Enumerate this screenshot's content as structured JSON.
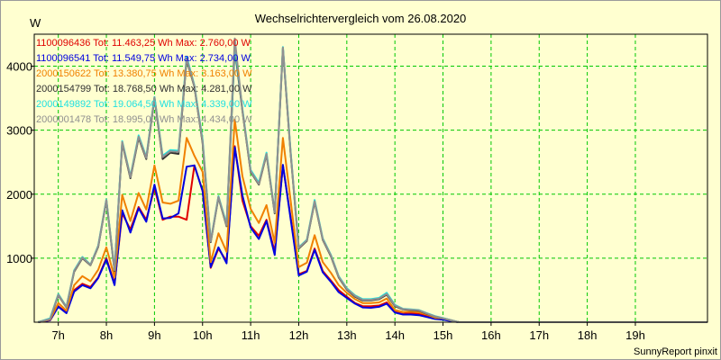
{
  "chart_data": {
    "type": "line",
    "title": "Wechselrichtervergleich vom 26.08.2020",
    "ylabel": "W",
    "xlabel": "",
    "footer": "SunnyReport pinxit",
    "ylim": [
      0,
      4500
    ],
    "xlim": [
      6.5,
      20.5
    ],
    "yticks": [
      1000,
      2000,
      3000,
      4000
    ],
    "xticks": [
      7,
      8,
      9,
      10,
      11,
      12,
      13,
      14,
      15,
      16,
      17,
      18,
      19
    ],
    "xtick_labels": [
      "7h",
      "8h",
      "9h",
      "10h",
      "11h",
      "12h",
      "13h",
      "14h",
      "15h",
      "16h",
      "17h",
      "18h",
      "19h"
    ],
    "grid": true,
    "legend_position": "top-left",
    "x": [
      6.58,
      6.83,
      7.0,
      7.17,
      7.33,
      7.5,
      7.67,
      7.83,
      8.0,
      8.17,
      8.33,
      8.5,
      8.67,
      8.83,
      9.0,
      9.17,
      9.33,
      9.5,
      9.67,
      9.83,
      10.0,
      10.17,
      10.33,
      10.5,
      10.67,
      10.83,
      11.0,
      11.17,
      11.33,
      11.5,
      11.67,
      11.83,
      12.0,
      12.17,
      12.33,
      12.5,
      12.67,
      12.83,
      13.0,
      13.17,
      13.33,
      13.5,
      13.67,
      13.83,
      14.0,
      14.17,
      14.33,
      14.5,
      14.67,
      14.83,
      15.0,
      15.17,
      15.33,
      15.5,
      15.67,
      15.83,
      16.0,
      16.17,
      16.33,
      16.5,
      16.67,
      16.83,
      17.0,
      17.17,
      17.33,
      17.5,
      17.67,
      17.83,
      18.0,
      18.17,
      18.33,
      18.5,
      18.67,
      18.83,
      19.0,
      19.17,
      19.33,
      19.5,
      19.67,
      19.83,
      20.0,
      20.25,
      20.5
    ],
    "series": [
      {
        "name": "1100096436",
        "label": "1100096436 Tot: 11.463,25 Wh Max: 2.760,00 W",
        "color": "#e00000",
        "values": [
          0,
          30,
          250,
          150,
          500,
          600,
          550,
          700,
          1000,
          600,
          1700,
          1450,
          1800,
          1600,
          2100,
          1600,
          1650,
          1650,
          1600,
          2450,
          2050,
          850,
          1150,
          950,
          2750,
          1900,
          1500,
          1350,
          1600,
          1100,
          2450,
          1650,
          750,
          800,
          1150,
          800,
          650,
          500,
          400,
          300,
          250,
          250,
          260,
          310,
          160,
          130,
          140,
          130,
          100,
          60,
          50,
          20,
          0,
          0,
          0,
          0,
          0,
          0,
          0,
          0,
          0,
          0,
          0,
          0,
          0,
          0,
          0,
          0,
          0,
          0,
          0,
          0,
          0,
          0,
          0,
          0,
          0,
          0,
          0,
          0,
          0,
          0,
          0
        ]
      },
      {
        "name": "1100096541",
        "label": "1100096541 Tot: 11.549,75 Wh Max: 2.734,00 W",
        "color": "#0000e0",
        "values": [
          0,
          30,
          240,
          140,
          480,
          580,
          530,
          690,
          980,
          580,
          1750,
          1400,
          1780,
          1570,
          2150,
          1620,
          1630,
          1700,
          2430,
          2450,
          2050,
          860,
          1170,
          920,
          2734,
          1980,
          1480,
          1300,
          1580,
          1050,
          2460,
          1620,
          730,
          790,
          1130,
          780,
          630,
          470,
          380,
          290,
          230,
          225,
          240,
          290,
          150,
          120,
          120,
          110,
          80,
          50,
          40,
          15,
          0,
          0,
          0,
          0,
          0,
          0,
          0,
          0,
          0,
          0,
          0,
          0,
          0,
          0,
          0,
          0,
          0,
          0,
          0,
          0,
          0,
          0,
          0,
          0,
          0,
          0,
          0,
          0,
          0,
          0,
          0
        ]
      },
      {
        "name": "2000150622",
        "label": "2000150622 Tot: 13.380,75 Wh Max: 3.163,00 W",
        "color": "#f08000",
        "values": [
          0,
          40,
          300,
          180,
          580,
          720,
          640,
          820,
          1170,
          700,
          1990,
          1580,
          2020,
          1760,
          2450,
          1870,
          1850,
          1900,
          2880,
          2600,
          2350,
          940,
          1390,
          1100,
          3163,
          2280,
          1770,
          1550,
          1830,
          1240,
          2880,
          1910,
          860,
          930,
          1360,
          940,
          770,
          580,
          460,
          360,
          300,
          300,
          310,
          370,
          190,
          160,
          165,
          155,
          120,
          70,
          60,
          25,
          0,
          0,
          0,
          0,
          0,
          0,
          0,
          0,
          0,
          0,
          0,
          0,
          0,
          0,
          0,
          0,
          0,
          0,
          0,
          0,
          0,
          0,
          0,
          0,
          0,
          0,
          0,
          0,
          0,
          0,
          0
        ]
      },
      {
        "name": "2000154799",
        "label": "2000154799 Tot: 18.768,50 Wh Max: 4.281,00 W",
        "color": "#303030",
        "values": [
          0,
          50,
          420,
          230,
          790,
          1000,
          890,
          1180,
          1900,
          800,
          2800,
          2250,
          2880,
          2550,
          3500,
          2550,
          2650,
          2630,
          4100,
          3680,
          2800,
          1250,
          1950,
          1500,
          4281,
          3300,
          2350,
          2150,
          2620,
          1700,
          4281,
          2650,
          1150,
          1270,
          1880,
          1290,
          1030,
          700,
          510,
          400,
          340,
          340,
          360,
          430,
          250,
          200,
          190,
          180,
          130,
          90,
          60,
          30,
          0,
          0,
          0,
          0,
          0,
          0,
          0,
          0,
          0,
          0,
          0,
          0,
          0,
          0,
          0,
          0,
          0,
          0,
          0,
          0,
          0,
          0,
          0,
          0,
          0,
          0,
          0,
          0,
          0,
          0,
          0
        ]
      },
      {
        "name": "2000149892",
        "label": "2000149892 Tot: 19.064,50 Wh Max: 4.339,00 W",
        "color": "#20e0e0",
        "values": [
          0,
          60,
          440,
          240,
          810,
          1020,
          900,
          1200,
          1920,
          820,
          2830,
          2280,
          2920,
          2580,
          3520,
          2600,
          2690,
          2680,
          4150,
          3700,
          2850,
          1270,
          1970,
          1530,
          4339,
          3330,
          2380,
          2180,
          2650,
          1720,
          4300,
          2680,
          1170,
          1290,
          1910,
          1310,
          1050,
          720,
          530,
          420,
          360,
          360,
          380,
          460,
          270,
          210,
          200,
          190,
          140,
          95,
          65,
          30,
          0,
          0,
          0,
          0,
          0,
          0,
          0,
          0,
          0,
          0,
          0,
          0,
          0,
          0,
          0,
          0,
          0,
          0,
          0,
          0,
          0,
          0,
          0,
          0,
          0,
          0,
          0,
          0,
          0,
          0,
          0
        ]
      },
      {
        "name": "2000001478",
        "label": "2000001478 Tot: 18.995,00 Wh Max: 4.434,00 W",
        "color": "#909090",
        "values": [
          0,
          50,
          430,
          235,
          800,
          1010,
          895,
          1190,
          1910,
          810,
          2815,
          2265,
          2900,
          2565,
          3510,
          2580,
          2670,
          2660,
          4120,
          3690,
          2820,
          1260,
          1960,
          1510,
          4434,
          3310,
          2360,
          2160,
          2630,
          1710,
          4290,
          2660,
          1160,
          1280,
          1890,
          1300,
          1040,
          710,
          520,
          410,
          350,
          350,
          370,
          440,
          260,
          205,
          195,
          185,
          135,
          92,
          62,
          30,
          0,
          0,
          0,
          0,
          0,
          0,
          0,
          0,
          0,
          0,
          0,
          0,
          0,
          0,
          0,
          0,
          0,
          0,
          0,
          0,
          0,
          0,
          0,
          0,
          0,
          0,
          0,
          0,
          0,
          0,
          0
        ]
      }
    ]
  }
}
